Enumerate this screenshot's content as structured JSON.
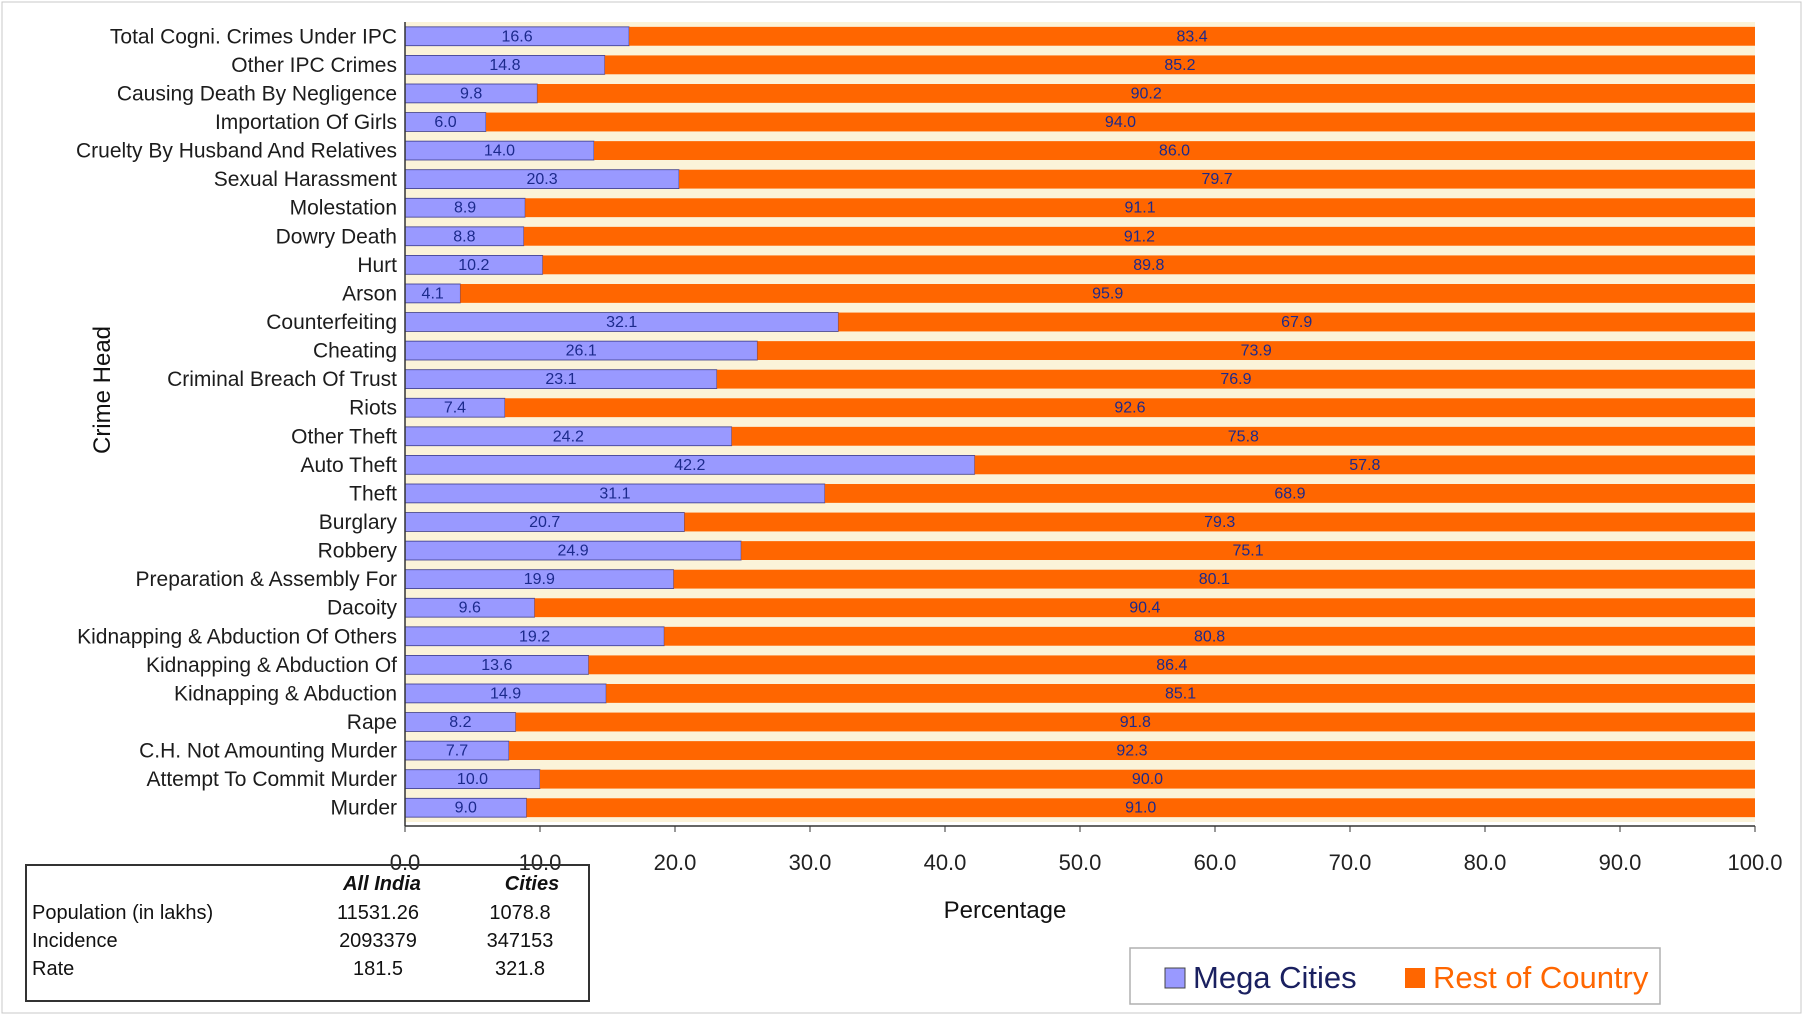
{
  "chart_data": {
    "type": "bar",
    "orientation": "horizontal",
    "stacked": true,
    "ylabel": "Crime Head",
    "xlabel": "Percentage",
    "xlim": [
      0,
      100
    ],
    "xticks": [
      "0.0",
      "10.0",
      "20.0",
      "30.0",
      "40.0",
      "50.0",
      "60.0",
      "70.0",
      "80.0",
      "90.0",
      "100.0"
    ],
    "grid": false,
    "legend_position": "bottom-right",
    "categories": [
      "Total  Cogni. Crimes Under IPC",
      "Other IPC Crimes",
      "Causing Death By Negligence",
      "Importation Of Girls",
      "Cruelty By Husband And Relatives",
      "Sexual Harassment",
      "Molestation",
      "Dowry Death",
      "Hurt",
      "Arson",
      "Counterfeiting",
      "Cheating",
      "Criminal Breach Of Trust",
      "Riots",
      "Other Theft",
      "Auto Theft",
      "Theft",
      "Burglary",
      "Robbery",
      "Preparation & Assembly For",
      "Dacoity",
      "Kidnapping & Abduction  Of Others",
      "Kidnapping & Abduction  Of",
      "Kidnapping & Abduction",
      "Rape",
      "C.H. Not Amounting Murder",
      "Attempt To Commit Murder",
      "Murder"
    ],
    "series": [
      {
        "name": "Mega Cities",
        "color": "#9999ff",
        "values": [
          16.6,
          14.8,
          9.8,
          6.0,
          14.0,
          20.3,
          8.9,
          8.8,
          10.2,
          4.1,
          32.1,
          26.1,
          23.1,
          7.4,
          24.2,
          42.2,
          31.1,
          20.7,
          24.9,
          19.9,
          9.6,
          19.2,
          13.6,
          14.9,
          8.2,
          7.7,
          10.0,
          9.0
        ],
        "labels": [
          "16.6",
          "14.8",
          "9.8",
          "6.0",
          "14.0",
          "20.3",
          "8.9",
          "8.8",
          "10.2",
          "4.1",
          "32.1",
          "26.1",
          "23.1",
          "7.4",
          "24.2",
          "42.2",
          "31.1",
          "20.7",
          "24.9",
          "19.9",
          "9.6",
          "19.2",
          "13.6",
          "14.9",
          "8.2",
          "7.7",
          "10.0",
          "9.0"
        ]
      },
      {
        "name": "Rest of Country",
        "color": "#ff6600",
        "values": [
          83.4,
          85.2,
          90.2,
          94.0,
          86.0,
          79.7,
          91.1,
          91.2,
          89.8,
          95.9,
          67.9,
          73.9,
          76.9,
          92.6,
          75.8,
          57.8,
          68.9,
          79.3,
          75.1,
          80.1,
          90.4,
          80.8,
          86.4,
          85.1,
          91.8,
          92.3,
          90.0,
          91.0
        ],
        "labels": [
          "83.4",
          "85.2",
          "90.2",
          "94.0",
          "86.0",
          "79.7",
          "91.1",
          "91.2",
          "89.8",
          "95.9",
          "67.9",
          "73.9",
          "76.9",
          "92.6",
          "75.8",
          "57.8",
          "68.9",
          "79.3",
          "75.1",
          "80.1",
          "90.4",
          "80.8",
          "86.4",
          "85.1",
          "91.8",
          "92.3",
          "90.0",
          "91.0"
        ]
      }
    ]
  },
  "table": {
    "headers": [
      "",
      "All India",
      "Cities"
    ],
    "rows": [
      [
        "Population (in lakhs)",
        "11531.26",
        "1078.8"
      ],
      [
        "Incidence",
        "2093379",
        "347153"
      ],
      [
        "Rate",
        "181.5",
        "321.8"
      ]
    ]
  },
  "colors": {
    "background": "#ffffff",
    "plot_area": "#fbf3d9",
    "mega_cities": "#9999ff",
    "rest_of_country": "#ff6600"
  }
}
